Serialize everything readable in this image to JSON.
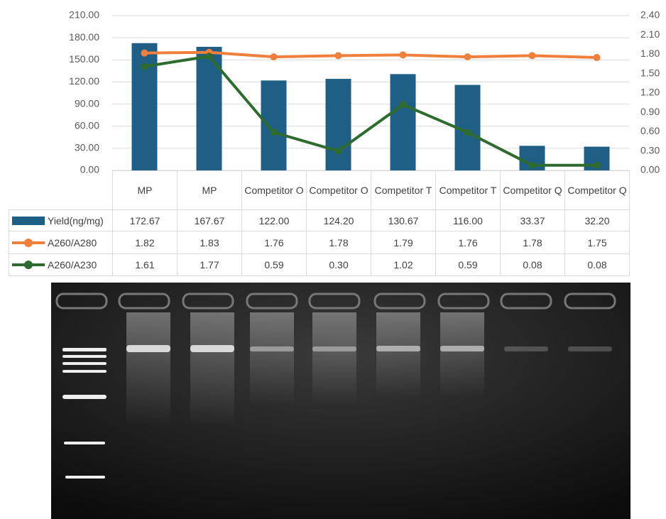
{
  "chart_data": {
    "type": "bar_line_table",
    "categories": [
      "MP",
      "MP",
      "Competitor O",
      "Competitor O",
      "Competitor T",
      "Competitor T",
      "Competitor Q",
      "Competitor Q"
    ],
    "series": [
      {
        "name": "Yield(ng/mg)",
        "color": "#1f5f86",
        "type": "bar",
        "values": [
          172.67,
          167.67,
          122.0,
          124.2,
          130.67,
          116.0,
          33.37,
          32.2
        ],
        "value_labels": [
          "172.67",
          "167.67",
          "122.00",
          "124.20",
          "130.67",
          "116.00",
          "33.37",
          "32.20"
        ]
      },
      {
        "name": "A260/A280",
        "color": "#f07f3c",
        "type": "line",
        "axis": "y2",
        "values": [
          1.82,
          1.83,
          1.76,
          1.78,
          1.79,
          1.76,
          1.78,
          1.75
        ],
        "value_labels": [
          "1.82",
          "1.83",
          "1.76",
          "1.78",
          "1.79",
          "1.76",
          "1.78",
          "1.75"
        ]
      },
      {
        "name": "A260/A230",
        "color": "#2e6b2e",
        "type": "line",
        "axis": "y2",
        "values": [
          1.61,
          1.77,
          0.59,
          0.3,
          1.02,
          0.59,
          0.08,
          0.08
        ],
        "value_labels": [
          "1.61",
          "1.77",
          "0.59",
          "0.30",
          "1.02",
          "0.59",
          "0.08",
          "0.08"
        ]
      }
    ],
    "ylim": [
      0,
      210
    ],
    "yticks": [
      {
        "value": 0,
        "label": "0.00"
      },
      {
        "value": 30,
        "label": "30.00"
      },
      {
        "value": 60,
        "label": "60.00"
      },
      {
        "value": 90,
        "label": "90.00"
      },
      {
        "value": 120,
        "label": "120.00"
      },
      {
        "value": 150,
        "label": "150.00"
      },
      {
        "value": 180,
        "label": "180.00"
      },
      {
        "value": 210,
        "label": "210.00"
      }
    ],
    "y2lim": [
      0,
      2.4
    ],
    "y2ticks": [
      {
        "value": 0,
        "label": "0.00"
      },
      {
        "value": 0.3,
        "label": "0.30"
      },
      {
        "value": 0.6,
        "label": "0.60"
      },
      {
        "value": 0.9,
        "label": "0.90"
      },
      {
        "value": 1.2,
        "label": "1.20"
      },
      {
        "value": 1.5,
        "label": "1.50"
      },
      {
        "value": 1.8,
        "label": "1.80"
      },
      {
        "value": 2.1,
        "label": "2.10"
      },
      {
        "value": 2.4,
        "label": "2.40"
      }
    ],
    "grid": true
  }
}
